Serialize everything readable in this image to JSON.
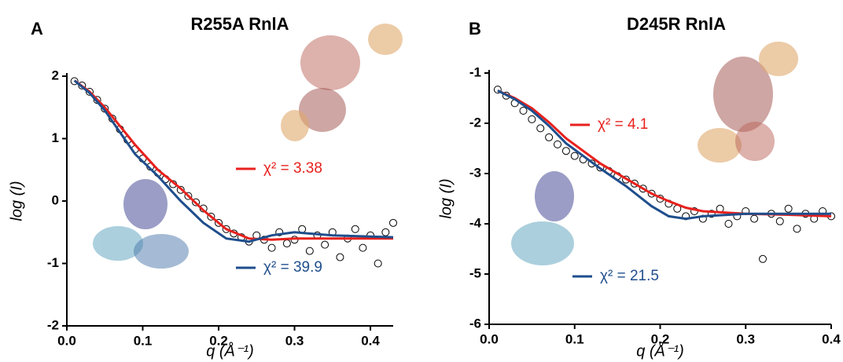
{
  "chart_data": [
    {
      "type": "line",
      "panel_label": "A",
      "title": "R255A RnlA",
      "x_label": "q (Å⁻¹)",
      "y_label": "log (I)",
      "xlim": [
        0,
        0.43
      ],
      "ylim": [
        -2,
        2
      ],
      "xticks": [
        {
          "value": 0,
          "label": "0.0"
        },
        0.1,
        0.2,
        0.3,
        0.4
      ],
      "yticks": [
        -2,
        -1,
        0,
        1,
        2
      ],
      "x": [
        0.01,
        0.03,
        0.05,
        0.07,
        0.09,
        0.12,
        0.15,
        0.18,
        0.21,
        0.24,
        0.27,
        0.3,
        0.35,
        0.4,
        0.43
      ],
      "series": [
        {
          "name": "χ² = 3.38",
          "color": "#e8211d",
          "values": [
            1.93,
            1.75,
            1.5,
            1.2,
            0.9,
            0.5,
            0.2,
            -0.15,
            -0.45,
            -0.6,
            -0.62,
            -0.6,
            -0.6,
            -0.6,
            -0.6
          ]
        },
        {
          "name": "χ² = 39.9",
          "color": "#1f4e8c",
          "values": [
            1.93,
            1.73,
            1.45,
            1.1,
            0.75,
            0.4,
            0.0,
            -0.35,
            -0.6,
            -0.65,
            -0.55,
            -0.5,
            -0.55,
            -0.57,
            -0.58
          ]
        }
      ],
      "scatter": {
        "color": "#000000",
        "x": [
          0.01,
          0.02,
          0.03,
          0.04,
          0.05,
          0.06,
          0.07,
          0.08,
          0.09,
          0.1,
          0.11,
          0.12,
          0.13,
          0.14,
          0.15,
          0.16,
          0.17,
          0.18,
          0.19,
          0.2,
          0.21,
          0.22,
          0.23,
          0.24,
          0.25,
          0.26,
          0.27,
          0.28,
          0.29,
          0.3,
          0.31,
          0.32,
          0.33,
          0.34,
          0.35,
          0.36,
          0.37,
          0.38,
          0.39,
          0.4,
          0.41,
          0.42,
          0.43
        ],
        "values": [
          1.92,
          1.85,
          1.75,
          1.62,
          1.48,
          1.32,
          1.15,
          0.98,
          0.83,
          0.68,
          0.55,
          0.45,
          0.35,
          0.27,
          0.18,
          0.08,
          -0.02,
          -0.12,
          -0.25,
          -0.35,
          -0.45,
          -0.52,
          -0.58,
          -0.65,
          -0.55,
          -0.62,
          -0.75,
          -0.5,
          -0.68,
          -0.62,
          -0.45,
          -0.8,
          -0.55,
          -0.7,
          -0.5,
          -0.9,
          -0.6,
          -0.45,
          -0.75,
          -0.55,
          -1.0,
          -0.5,
          -0.35
        ]
      }
    },
    {
      "type": "line",
      "panel_label": "B",
      "title": "D245R  RnlA",
      "x_label": "q (Å⁻¹)",
      "y_label": "log (I)",
      "xlim": [
        0,
        0.4
      ],
      "ylim": [
        -6,
        -1
      ],
      "xticks": [
        {
          "value": 0,
          "label": "0.0"
        },
        0.1,
        0.2,
        0.3,
        0.4
      ],
      "yticks": [
        -6,
        -5,
        -4,
        -3,
        -2,
        -1
      ],
      "x": [
        0.01,
        0.03,
        0.05,
        0.07,
        0.09,
        0.11,
        0.13,
        0.16,
        0.19,
        0.21,
        0.23,
        0.25,
        0.3,
        0.35,
        0.4
      ],
      "series": [
        {
          "name": "χ² = 4.1",
          "color": "#e8211d",
          "values": [
            -1.35,
            -1.5,
            -1.7,
            -1.98,
            -2.3,
            -2.55,
            -2.8,
            -3.1,
            -3.4,
            -3.55,
            -3.68,
            -3.75,
            -3.8,
            -3.82,
            -3.85
          ]
        },
        {
          "name": "χ² = 21.5",
          "color": "#1f4e8c",
          "values": [
            -1.35,
            -1.52,
            -1.75,
            -2.05,
            -2.4,
            -2.65,
            -2.9,
            -3.25,
            -3.65,
            -3.85,
            -3.9,
            -3.85,
            -3.8,
            -3.8,
            -3.8
          ]
        }
      ],
      "scatter": {
        "color": "#000000",
        "x": [
          0.01,
          0.02,
          0.03,
          0.04,
          0.05,
          0.06,
          0.07,
          0.08,
          0.09,
          0.1,
          0.11,
          0.12,
          0.13,
          0.14,
          0.15,
          0.16,
          0.17,
          0.18,
          0.19,
          0.2,
          0.21,
          0.22,
          0.23,
          0.24,
          0.25,
          0.26,
          0.27,
          0.28,
          0.29,
          0.3,
          0.31,
          0.32,
          0.33,
          0.34,
          0.35,
          0.36,
          0.37,
          0.38,
          0.39,
          0.4
        ],
        "values": [
          -1.33,
          -1.45,
          -1.6,
          -1.75,
          -1.92,
          -2.1,
          -2.28,
          -2.42,
          -2.55,
          -2.65,
          -2.72,
          -2.8,
          -2.88,
          -2.95,
          -3.05,
          -3.12,
          -3.2,
          -3.3,
          -3.4,
          -3.5,
          -3.6,
          -3.7,
          -3.85,
          -3.75,
          -3.9,
          -3.8,
          -3.7,
          -4.0,
          -3.85,
          -3.75,
          -3.9,
          -4.7,
          -3.8,
          -3.95,
          -3.7,
          -4.1,
          -3.8,
          -3.9,
          -3.75,
          -3.85
        ]
      }
    }
  ]
}
